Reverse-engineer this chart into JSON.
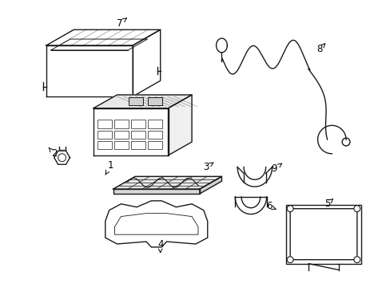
{
  "background_color": "#ffffff",
  "line_color": "#1a1a1a",
  "line_width": 1.0,
  "label_fontsize": 8.5,
  "figsize": [
    4.89,
    3.6
  ],
  "dpi": 100
}
